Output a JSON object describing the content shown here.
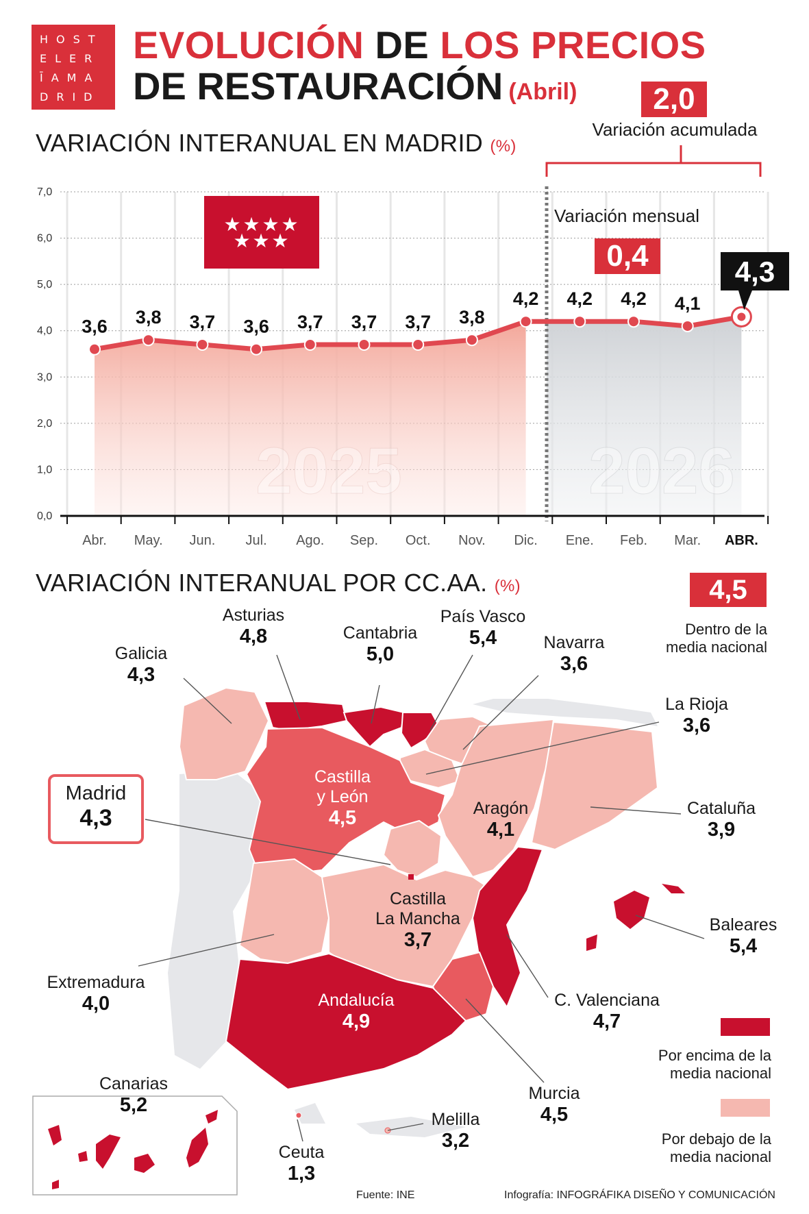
{
  "logo": {
    "lines": [
      "HOST",
      "ELER",
      "ĪAMA",
      "DRID"
    ]
  },
  "title": {
    "part1_red": "EVOLUCIÓN",
    "part1_dark": "DE",
    "part1_red2": "LOS PRECIOS",
    "part2": "DE RESTAURACIÓN",
    "subtitle": "(Abril)"
  },
  "section1": {
    "title": "VARIACIÓN INTERANUAL EN MADRID",
    "unit": "(%)"
  },
  "accum": {
    "value": "2,0",
    "label": "Variación acumulada"
  },
  "monthly": {
    "value": "0,4",
    "label": "Variación mensual"
  },
  "colors": {
    "accent": "#d9303a",
    "dark_red": "#c8102e",
    "mid_red": "#e85a5f",
    "light_pink": "#f5b8b0",
    "gray_fill": "#d7d9dc",
    "portugal_gray": "#e6e7ea"
  },
  "chart_data": {
    "type": "line",
    "x": [
      "Abr.",
      "May.",
      "Jun.",
      "Jul.",
      "Ago.",
      "Sep.",
      "Oct.",
      "Nov.",
      "Dic.",
      "Ene.",
      "Feb.",
      "Mar.",
      "ABR."
    ],
    "values": [
      3.6,
      3.8,
      3.7,
      3.6,
      3.7,
      3.7,
      3.7,
      3.8,
      4.2,
      4.2,
      4.2,
      4.1,
      4.3
    ],
    "value_labels": [
      "3,6",
      "3,8",
      "3,7",
      "3,6",
      "3,7",
      "3,7",
      "3,7",
      "3,8",
      "4,2",
      "4,2",
      "4,2",
      "4,1",
      "4,3"
    ],
    "y_ticks": [
      "0,0",
      "1,0",
      "2,0",
      "3,0",
      "4,0",
      "5,0",
      "6,0",
      "7,0"
    ],
    "ylim": [
      0,
      7
    ],
    "years": [
      "2025",
      "2026"
    ],
    "grid": true
  },
  "section2": {
    "title": "VARIACIÓN INTERANUAL POR CC.AA.",
    "unit": "(%)"
  },
  "national": {
    "value": "4,5",
    "label_line1": "Dentro de la",
    "label_line2": "media nacional"
  },
  "regions": [
    {
      "name": "Asturias",
      "value": "4,8"
    },
    {
      "name": "Galicia",
      "value": "4,3"
    },
    {
      "name": "Cantabria",
      "value": "5,0"
    },
    {
      "name": "País Vasco",
      "value": "5,4"
    },
    {
      "name": "Navarra",
      "value": "3,6"
    },
    {
      "name": "La Rioja",
      "value": "3,6"
    },
    {
      "name": "Castilla y León",
      "line1": "Castilla",
      "line2": "y León",
      "value": "4,5"
    },
    {
      "name": "Madrid",
      "value": "4,3"
    },
    {
      "name": "Aragón",
      "value": "4,1"
    },
    {
      "name": "Cataluña",
      "value": "3,9"
    },
    {
      "name": "Castilla La Mancha",
      "line1": "Castilla",
      "line2": "La Mancha",
      "value": "3,7"
    },
    {
      "name": "Baleares",
      "value": "5,4"
    },
    {
      "name": "Extremadura",
      "value": "4,0"
    },
    {
      "name": "Andalucía",
      "value": "4,9"
    },
    {
      "name": "C. Valenciana",
      "value": "4,7"
    },
    {
      "name": "Murcia",
      "value": "4,5"
    },
    {
      "name": "Canarias",
      "value": "5,2"
    },
    {
      "name": "Ceuta",
      "value": "1,3"
    },
    {
      "name": "Melilla",
      "value": "3,2"
    }
  ],
  "legend": {
    "above_line1": "Por encima de la",
    "above_line2": "media nacional",
    "below_line1": "Por debajo de la",
    "below_line2": "media nacional"
  },
  "footer": {
    "source": "Fuente: INE",
    "credit_prefix": "Infografía:",
    "credit": "INFOGRÁFIKA DISEÑO Y COMUNICACIÓN"
  }
}
